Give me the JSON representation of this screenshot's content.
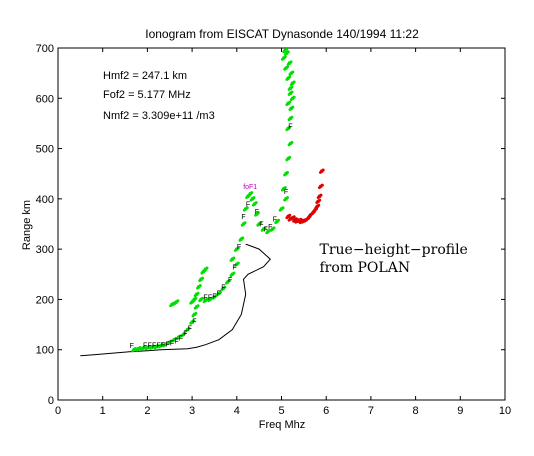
{
  "chart_data": {
    "type": "scatter",
    "title": "Ionogram from EISCAT Dynasonde 140/1994 11:22",
    "xlabel": "Freq Mhz",
    "ylabel": "Range km",
    "xlim": [
      0,
      10
    ],
    "ylim": [
      0,
      700
    ],
    "x_ticks": [
      0,
      1,
      2,
      3,
      4,
      5,
      6,
      7,
      8,
      9,
      10
    ],
    "y_ticks": [
      0,
      100,
      200,
      300,
      400,
      500,
      600,
      700
    ],
    "x_tick_labels": [
      "0",
      "1",
      "2",
      "3",
      "4",
      "5",
      "6",
      "7",
      "8",
      "9",
      "10"
    ],
    "y_tick_labels": [
      "0",
      "100",
      "200",
      "300",
      "400",
      "500",
      "600",
      "700"
    ],
    "grid": false,
    "parameters": [
      "Hmf2  = 247.1 km",
      "Fof2  = 5.177 MHz",
      "Nmf2   = 3.309e+11 /m3"
    ],
    "annotations": [
      {
        "text": "True−height−profile",
        "x": 5.85,
        "y": 290
      },
      {
        "text": "from POLAN",
        "x": 5.85,
        "y": 255
      }
    ],
    "critical_label": {
      "text": "foF1",
      "x": 4.3,
      "y": 420
    },
    "colors": {
      "o_trace": "#00e000",
      "x_trace": "#e00000",
      "profile": "#000000",
      "critical": "#c000c0"
    },
    "series": [
      {
        "style": "points",
        "color": "#00e000",
        "x": [
          1.7,
          1.8,
          1.9,
          2.0,
          2.1,
          2.2,
          2.3,
          2.4,
          2.5,
          2.6,
          2.7,
          2.8,
          2.9,
          3.0,
          3.05,
          3.1,
          2.55,
          2.6,
          2.65,
          3.05,
          3.1,
          3.15,
          3.2,
          3.25,
          3.3,
          3.0,
          3.05,
          3.2,
          3.3,
          3.4,
          3.5,
          3.6,
          3.7,
          3.8,
          3.9,
          4.0,
          3.9,
          4.0,
          4.1,
          4.15,
          4.2,
          4.25,
          4.3,
          4.35,
          4.4,
          4.45,
          4.5,
          4.6,
          4.7,
          4.8,
          4.9,
          5.0,
          5.1,
          5.05,
          5.1,
          5.15,
          5.2,
          5.15,
          5.2,
          5.22,
          5.25,
          5.2,
          5.15,
          5.1,
          5.05,
          5.08,
          5.12,
          5.18,
          5.22,
          5.25,
          5.2,
          5.15
        ],
        "y": [
          100,
          102,
          103,
          104,
          105,
          106,
          108,
          110,
          115,
          120,
          125,
          130,
          140,
          155,
          170,
          185,
          190,
          192,
          195,
          200,
          210,
          225,
          240,
          255,
          260,
          195,
          200,
          200,
          198,
          200,
          205,
          212,
          222,
          235,
          250,
          270,
          280,
          300,
          320,
          350,
          380,
          405,
          410,
          400,
          390,
          370,
          350,
          340,
          335,
          340,
          355,
          380,
          400,
          420,
          450,
          480,
          510,
          540,
          560,
          580,
          600,
          620,
          640,
          660,
          680,
          695,
          690,
          670,
          650,
          630,
          610,
          590
        ]
      },
      {
        "style": "points",
        "color": "#e00000",
        "x": [
          5.15,
          5.2,
          5.25,
          5.3,
          5.35,
          5.4,
          5.45,
          5.5,
          5.55,
          5.6,
          5.65,
          5.7,
          5.75,
          5.8,
          5.82,
          5.85,
          5.88,
          5.9
        ],
        "y": [
          365,
          360,
          362,
          358,
          356,
          357,
          355,
          356,
          358,
          362,
          368,
          372,
          378,
          385,
          395,
          405,
          425,
          455
        ]
      },
      {
        "style": "line",
        "color": "#000000",
        "x": [
          0.5,
          0.8,
          1.2,
          1.6,
          2.0,
          2.3,
          2.6,
          2.9,
          3.1,
          3.3,
          3.6,
          3.9,
          4.1,
          4.2,
          4.15,
          4.25,
          4.6,
          4.75,
          4.5,
          4.2
        ],
        "y": [
          88,
          90,
          93,
          96,
          98,
          100,
          101,
          102,
          105,
          110,
          120,
          140,
          170,
          210,
          240,
          250,
          265,
          280,
          300,
          310
        ]
      }
    ],
    "f_markers": [
      {
        "x": 1.65,
        "y": 103
      },
      {
        "x": 1.95,
        "y": 104
      },
      {
        "x": 2.05,
        "y": 104
      },
      {
        "x": 2.15,
        "y": 104
      },
      {
        "x": 2.25,
        "y": 104
      },
      {
        "x": 2.35,
        "y": 105
      },
      {
        "x": 2.45,
        "y": 106
      },
      {
        "x": 2.55,
        "y": 108
      },
      {
        "x": 2.65,
        "y": 112
      },
      {
        "x": 2.75,
        "y": 118
      },
      {
        "x": 2.85,
        "y": 128
      },
      {
        "x": 2.95,
        "y": 138
      },
      {
        "x": 3.05,
        "y": 152
      },
      {
        "x": 3.3,
        "y": 200
      },
      {
        "x": 3.4,
        "y": 200
      },
      {
        "x": 3.5,
        "y": 202
      },
      {
        "x": 3.6,
        "y": 208
      },
      {
        "x": 3.7,
        "y": 220
      },
      {
        "x": 3.85,
        "y": 235
      },
      {
        "x": 3.95,
        "y": 260
      },
      {
        "x": 4.05,
        "y": 300
      },
      {
        "x": 4.15,
        "y": 360
      },
      {
        "x": 4.25,
        "y": 385
      },
      {
        "x": 4.45,
        "y": 370
      },
      {
        "x": 4.55,
        "y": 345
      },
      {
        "x": 4.65,
        "y": 335
      },
      {
        "x": 4.75,
        "y": 340
      },
      {
        "x": 4.85,
        "y": 355
      },
      {
        "x": 5.1,
        "y": 410
      },
      {
        "x": 5.2,
        "y": 540
      }
    ]
  }
}
